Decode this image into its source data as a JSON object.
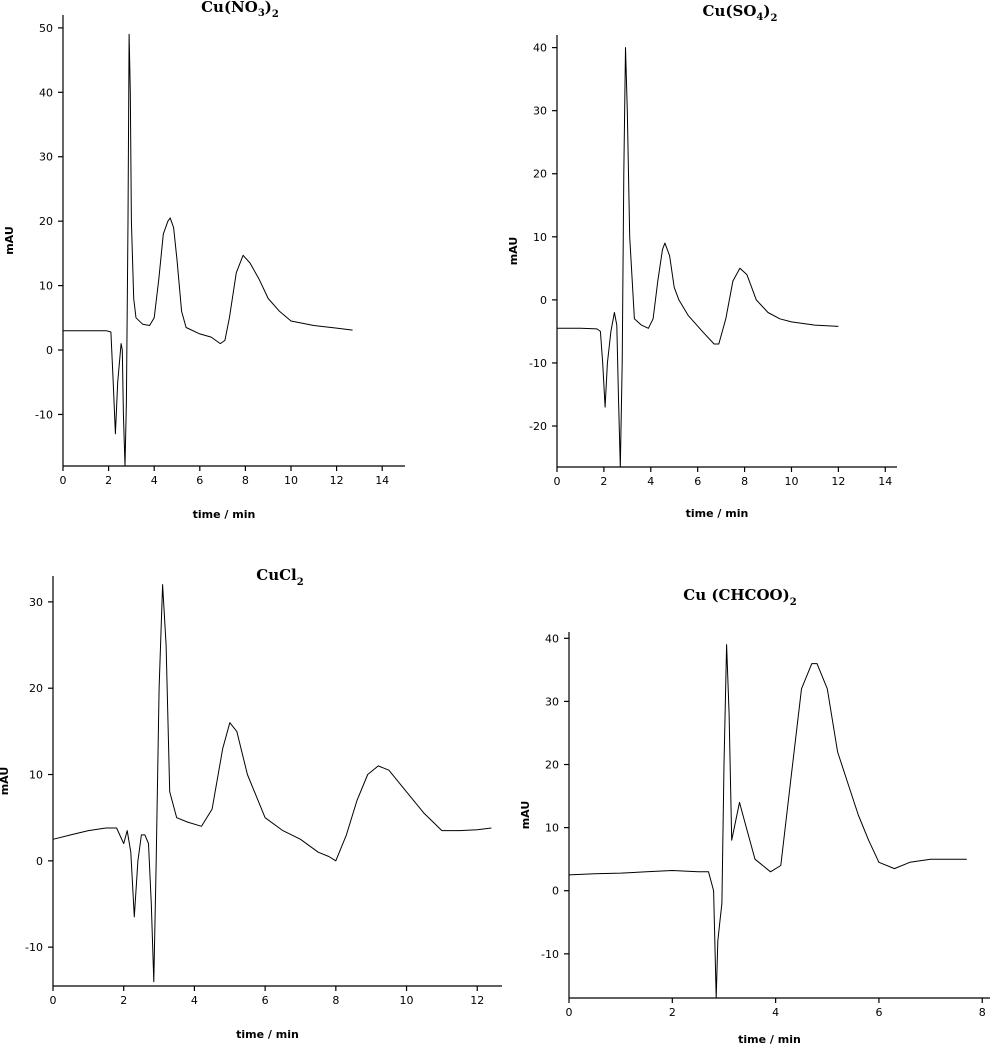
{
  "chart_data": [
    {
      "type": "line",
      "title": "Cu(NO3)2",
      "title_main": "Cu(NO",
      "title_sub1": "3",
      "title_mid": ")",
      "title_sub2": "2",
      "xlabel": "time / min",
      "ylabel": "mAU",
      "xlim": [
        0,
        15
      ],
      "ylim": [
        -18,
        52
      ],
      "xticks": [
        0,
        2,
        4,
        6,
        8,
        10,
        12,
        14
      ],
      "yticks": [
        -10,
        0,
        10,
        20,
        30,
        40,
        50
      ],
      "grid": false,
      "series": [
        {
          "x": [
            0,
            1.0,
            1.9,
            2.1,
            2.2,
            2.3,
            2.4,
            2.55,
            2.6,
            2.65,
            2.72,
            2.78,
            2.85,
            2.9,
            2.95,
            3.0,
            3.1,
            3.2,
            3.5,
            3.8,
            4.0,
            4.2,
            4.4,
            4.6,
            4.7,
            4.85,
            5.0,
            5.2,
            5.4,
            6.0,
            6.5,
            6.9,
            7.1,
            7.3,
            7.6,
            7.9,
            8.2,
            8.6,
            9.0,
            9.5,
            10.0,
            11.0,
            12.0,
            12.7
          ],
          "y": [
            3,
            3,
            3,
            2.8,
            -5,
            -13,
            -5,
            1,
            0,
            -10,
            -18,
            -8,
            20,
            49,
            40,
            20,
            8,
            5,
            4,
            3.8,
            5,
            11,
            18,
            20,
            20.5,
            19,
            14,
            6,
            3.5,
            2.5,
            2,
            1,
            1.5,
            5,
            12,
            14.7,
            13.5,
            11,
            8,
            6,
            4.5,
            3.8,
            3.4,
            3.1
          ]
        }
      ]
    },
    {
      "type": "line",
      "title": "Cu(SO4)2",
      "title_main": "Cu(SO",
      "title_sub1": "4",
      "title_mid": ")",
      "title_sub2": "2",
      "xlabel": "time / min",
      "ylabel": "mAU",
      "xlim": [
        0,
        14.5
      ],
      "ylim": [
        -26.5,
        42
      ],
      "xticks": [
        0,
        2,
        4,
        6,
        8,
        10,
        12,
        14
      ],
      "yticks": [
        -20,
        -10,
        0,
        10,
        20,
        30,
        40
      ],
      "grid": false,
      "series": [
        {
          "x": [
            0,
            1.0,
            1.7,
            1.85,
            1.95,
            2.05,
            2.15,
            2.3,
            2.45,
            2.55,
            2.62,
            2.7,
            2.78,
            2.85,
            2.92,
            3.0,
            3.1,
            3.3,
            3.6,
            3.9,
            4.1,
            4.3,
            4.5,
            4.6,
            4.8,
            5.0,
            5.2,
            5.6,
            6.2,
            6.7,
            6.9,
            7.2,
            7.5,
            7.8,
            8.1,
            8.5,
            9.0,
            9.5,
            10.0,
            11.0,
            12.0
          ],
          "y": [
            -4.5,
            -4.5,
            -4.6,
            -5,
            -10,
            -17,
            -10,
            -5,
            -2,
            -4,
            -15,
            -26.5,
            -10,
            20,
            40,
            30,
            10,
            -3,
            -4,
            -4.5,
            -3,
            3,
            8,
            9,
            7,
            2,
            0,
            -2.5,
            -5,
            -7,
            -7,
            -3,
            3,
            5,
            4,
            0,
            -2,
            -3,
            -3.5,
            -4,
            -4.2
          ]
        }
      ]
    },
    {
      "type": "line",
      "title": "CuCl2",
      "title_main": "CuCl",
      "title_sub1": "",
      "title_mid": "",
      "title_sub2": "2",
      "xlabel": "time / min",
      "ylabel": "mAU",
      "xlim": [
        0,
        12.7
      ],
      "ylim": [
        -14.5,
        33
      ],
      "xticks": [
        0,
        2,
        4,
        6,
        8,
        10,
        12
      ],
      "yticks": [
        -10,
        0,
        10,
        20,
        30
      ],
      "grid": false,
      "series": [
        {
          "x": [
            0,
            0.5,
            1.0,
            1.5,
            1.8,
            2.0,
            2.1,
            2.2,
            2.3,
            2.4,
            2.5,
            2.6,
            2.7,
            2.78,
            2.85,
            2.92,
            3.0,
            3.1,
            3.2,
            3.3,
            3.5,
            3.8,
            4.2,
            4.5,
            4.8,
            5.0,
            5.2,
            5.5,
            6.0,
            6.5,
            7.0,
            7.5,
            7.8,
            8.0,
            8.3,
            8.6,
            8.9,
            9.2,
            9.5,
            10.0,
            10.5,
            11.0,
            11.5,
            12.0,
            12.4
          ],
          "y": [
            2.5,
            3,
            3.5,
            3.8,
            3.8,
            2,
            3.5,
            1,
            -6.5,
            0,
            3,
            3,
            2,
            -5,
            -14,
            0,
            20,
            32,
            25,
            8,
            5,
            4.5,
            4,
            6,
            13,
            16,
            15,
            10,
            5,
            3.5,
            2.5,
            1,
            0.5,
            0,
            3,
            7,
            10,
            11,
            10.5,
            8,
            5.5,
            3.5,
            3.5,
            3.6,
            3.8
          ]
        }
      ]
    },
    {
      "type": "line",
      "title": "Cu (CHCOO)2",
      "title_main": "Cu (CHCOO)",
      "title_sub1": "",
      "title_mid": "",
      "title_sub2": "2",
      "xlabel": "time / min",
      "ylabel": "mAU",
      "xlim": [
        0,
        8.15
      ],
      "ylim": [
        -17,
        41
      ],
      "xticks": [
        0,
        2,
        4,
        6,
        8
      ],
      "yticks": [
        -10,
        0,
        10,
        20,
        30,
        40
      ],
      "grid": false,
      "series": [
        {
          "x": [
            0,
            0.5,
            1.0,
            1.5,
            2.0,
            2.5,
            2.7,
            2.8,
            2.85,
            2.88,
            2.92,
            2.96,
            3.0,
            3.05,
            3.1,
            3.15,
            3.2,
            3.3,
            3.4,
            3.6,
            3.9,
            4.1,
            4.3,
            4.5,
            4.7,
            4.8,
            5.0,
            5.2,
            5.4,
            5.6,
            5.8,
            6.0,
            6.3,
            6.6,
            7.0,
            7.5,
            7.7
          ],
          "y": [
            2.5,
            2.7,
            2.8,
            3,
            3.2,
            3,
            3,
            0,
            -17,
            -8,
            -5,
            -2,
            20,
            39,
            28,
            8,
            10,
            14,
            11,
            5,
            3,
            4,
            18,
            32,
            36,
            36,
            32,
            22,
            17,
            12,
            8,
            4.5,
            3.5,
            4.5,
            5,
            5,
            5
          ]
        }
      ]
    }
  ]
}
